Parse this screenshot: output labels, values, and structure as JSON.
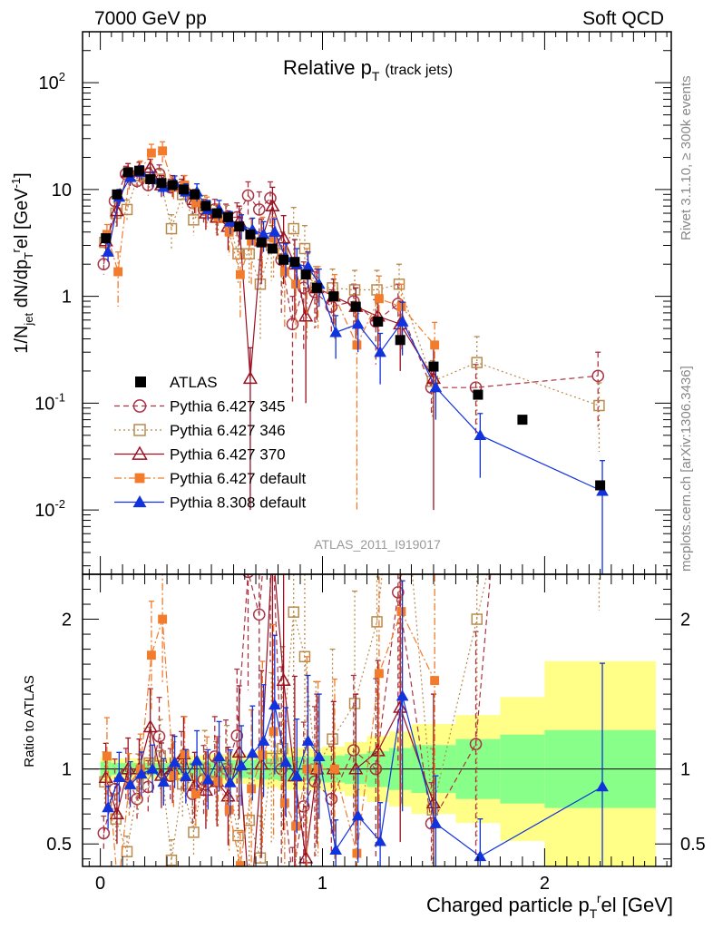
{
  "header": {
    "left": "7000 GeV pp",
    "right": "Soft QCD"
  },
  "side": {
    "rivet": "Rivet 3.1.10, ≥ 300k events",
    "mcplots": "mcplots.cern.ch [arXiv:1306.3436]"
  },
  "chart_data": {
    "type": "scatter",
    "title": "Relative p_T (track jets)",
    "title_main": "Relative p",
    "title_sub": "T",
    "title_note": "(track jets)",
    "watermark": "ATLAS_2011_I919017",
    "ylabel_main": "1/N_jet dN/dp_T^rel [GeV^-1]",
    "xlabel": "Charged particle p_T^rel [GeV]",
    "ylabel_ratio": "Ratio to ATLAS",
    "xlim": [
      -0.08,
      2.57
    ],
    "ylim_main": [
      0.0025,
      300
    ],
    "ylim_ratio": [
      0.35,
      2.3
    ],
    "yscale_main": "log",
    "legend_position": "center-left",
    "x_ticks": [
      "0",
      "1",
      "2"
    ],
    "y_ticks_main": [
      "10^-2",
      "10^-1",
      "1",
      "10",
      "10^2"
    ],
    "y_ticks_ratio": [
      "0.5",
      "1",
      "2"
    ],
    "data": {
      "name": "ATLAS",
      "x": [
        0.025,
        0.075,
        0.125,
        0.175,
        0.225,
        0.275,
        0.325,
        0.375,
        0.425,
        0.475,
        0.525,
        0.575,
        0.625,
        0.675,
        0.725,
        0.775,
        0.825,
        0.875,
        0.925,
        0.975,
        1.05,
        1.15,
        1.25,
        1.35,
        1.5,
        1.7,
        1.9,
        2.25
      ],
      "y": [
        3.5,
        9.0,
        14.5,
        15.0,
        12.5,
        11.5,
        11.0,
        10.0,
        9.0,
        7.0,
        6.0,
        5.5,
        4.5,
        3.8,
        3.2,
        2.8,
        2.2,
        2.1,
        1.6,
        1.2,
        1.0,
        0.8,
        0.58,
        0.39,
        0.22,
        0.12,
        0.07,
        0.017
      ]
    },
    "band_edges": [
      0.0,
      0.05,
      0.1,
      0.2,
      0.3,
      0.4,
      0.5,
      0.6,
      0.7,
      0.8,
      0.9,
      1.0,
      1.1,
      1.2,
      1.3,
      1.4,
      1.6,
      1.8,
      2.0,
      2.5
    ],
    "band_stat": [
      0.05,
      0.04,
      0.04,
      0.04,
      0.04,
      0.05,
      0.06,
      0.06,
      0.07,
      0.08,
      0.08,
      0.09,
      0.1,
      0.12,
      0.14,
      0.16,
      0.2,
      0.23,
      0.26
    ],
    "band_total": [
      0.08,
      0.07,
      0.07,
      0.07,
      0.08,
      0.09,
      0.1,
      0.1,
      0.12,
      0.14,
      0.14,
      0.15,
      0.18,
      0.22,
      0.25,
      0.3,
      0.36,
      0.48,
      0.72
    ],
    "series": [
      {
        "name": "Pythia 6.427 345",
        "color": "#aa3344",
        "marker": "open-circle",
        "line": "dashed",
        "x": [
          0.025,
          0.075,
          0.125,
          0.175,
          0.225,
          0.275,
          0.325,
          0.375,
          0.425,
          0.475,
          0.525,
          0.575,
          0.625,
          0.675,
          0.725,
          0.775,
          0.825,
          0.875,
          0.925,
          0.975,
          1.05,
          1.15,
          1.25,
          1.35,
          1.5,
          1.7,
          2.25
        ],
        "y": [
          2.0,
          7.8,
          14.0,
          12.0,
          11.0,
          14.0,
          10.5,
          10.5,
          7.5,
          6.5,
          6.5,
          5.5,
          5.5,
          8.8,
          6.5,
          8.3,
          2.2,
          0.55,
          1.2,
          1.1,
          0.8,
          0.9,
          0.58,
          0.85,
          0.14,
          0.14,
          0.18
        ],
        "err": [
          0.4,
          1.8,
          2.5,
          2.2,
          2.2,
          3.0,
          2.0,
          2.0,
          1.8,
          1.6,
          1.6,
          1.8,
          2.0,
          3.0,
          3.0,
          3.5,
          1.5,
          0.45,
          0.9,
          0.6,
          0.35,
          0.4,
          0.35,
          0.45,
          0.06,
          0.09,
          0.12
        ]
      },
      {
        "name": "Pythia 6.427 346",
        "color": "#b98a4b",
        "marker": "open-square",
        "line": "dotted",
        "x": [
          0.025,
          0.075,
          0.125,
          0.175,
          0.225,
          0.275,
          0.325,
          0.375,
          0.425,
          0.475,
          0.525,
          0.575,
          0.625,
          0.675,
          0.725,
          0.775,
          0.825,
          0.875,
          0.925,
          0.975,
          1.05,
          1.15,
          1.25,
          1.35,
          1.5,
          1.7,
          2.25
        ],
        "y": [
          3.2,
          6.0,
          6.5,
          13.5,
          13.0,
          12.5,
          4.3,
          9.0,
          5.2,
          7.0,
          5.5,
          5.5,
          2.5,
          2.5,
          1.3,
          3.0,
          2.5,
          4.3,
          2.8,
          1.2,
          1.2,
          1.15,
          1.15,
          1.3,
          0.16,
          0.24,
          0.095
        ],
        "err": [
          0.7,
          1.5,
          1.5,
          3.0,
          3.0,
          2.8,
          1.5,
          2.2,
          1.5,
          1.8,
          1.6,
          1.6,
          1.2,
          1.2,
          0.9,
          1.6,
          1.5,
          2.5,
          1.8,
          0.7,
          0.6,
          0.6,
          0.6,
          0.7,
          0.09,
          0.18,
          0.06
        ]
      },
      {
        "name": "Pythia 6.427 370",
        "color": "#991122",
        "marker": "open-triangle",
        "line": "solid",
        "x": [
          0.025,
          0.075,
          0.125,
          0.175,
          0.225,
          0.275,
          0.325,
          0.375,
          0.425,
          0.475,
          0.525,
          0.575,
          0.625,
          0.675,
          0.725,
          0.775,
          0.825,
          0.875,
          0.925,
          0.975,
          1.05,
          1.15,
          1.25,
          1.35,
          1.5
        ],
        "y": [
          3.3,
          6.3,
          14.5,
          15.0,
          16.0,
          11.0,
          11.0,
          11.0,
          8.0,
          6.0,
          5.5,
          4.5,
          5.0,
          0.17,
          3.3,
          7.0,
          3.5,
          2.0,
          0.65,
          1.2,
          1.0,
          0.8,
          0.65,
          0.55,
          0.17
        ],
        "err": [
          0.8,
          1.8,
          3.0,
          3.0,
          3.2,
          2.5,
          2.5,
          2.5,
          2.0,
          1.8,
          1.8,
          1.8,
          2.0,
          0.16,
          2.0,
          3.5,
          2.2,
          1.4,
          0.55,
          0.6,
          0.45,
          0.4,
          0.35,
          0.35,
          0.16
        ]
      },
      {
        "name": "Pythia 6.427 default",
        "color": "#f27b2c",
        "marker": "filled-square",
        "line": "dash-dot",
        "x": [
          0.025,
          0.075,
          0.125,
          0.175,
          0.225,
          0.275,
          0.325,
          0.375,
          0.425,
          0.475,
          0.525,
          0.575,
          0.625,
          0.675,
          0.725,
          0.775,
          0.825,
          0.875,
          0.925,
          0.975,
          1.05,
          1.15,
          1.25,
          1.35,
          1.5
        ],
        "y": [
          3.8,
          1.7,
          13.0,
          15.0,
          22.0,
          23.0,
          10.5,
          11.0,
          7.5,
          6.5,
          5.5,
          4.0,
          1.6,
          3.3,
          3.5,
          3.5,
          1.7,
          1.3,
          1.6,
          1.2,
          1.0,
          0.35,
          0.95,
          0.8,
          0.35
        ],
        "err": [
          0.9,
          0.9,
          3.0,
          3.5,
          4.5,
          5.0,
          2.5,
          2.5,
          2.0,
          2.0,
          1.8,
          1.6,
          1.0,
          2.0,
          2.0,
          2.0,
          1.2,
          0.9,
          1.2,
          0.7,
          0.6,
          0.34,
          0.6,
          0.5,
          0.22
        ]
      },
      {
        "name": "Pythia 8.308 default",
        "color": "#1133dd",
        "marker": "filled-triangle",
        "line": "solid",
        "x": [
          0.025,
          0.075,
          0.125,
          0.175,
          0.225,
          0.275,
          0.325,
          0.375,
          0.425,
          0.475,
          0.525,
          0.575,
          0.625,
          0.675,
          0.725,
          0.775,
          0.825,
          0.875,
          0.925,
          0.975,
          1.05,
          1.15,
          1.25,
          1.35,
          1.5,
          1.7,
          2.25
        ],
        "y": [
          2.6,
          8.5,
          13.0,
          14.5,
          12.5,
          10.5,
          11.5,
          9.5,
          9.5,
          6.5,
          6.5,
          5.0,
          4.6,
          4.2,
          3.8,
          4.0,
          2.3,
          2.0,
          1.9,
          1.3,
          0.46,
          0.55,
          0.3,
          0.58,
          0.14,
          0.05,
          0.015
        ],
        "err": [
          0.5,
          1.5,
          2.2,
          2.2,
          2.0,
          1.8,
          1.9,
          1.8,
          1.8,
          1.4,
          1.4,
          1.2,
          1.2,
          1.2,
          1.2,
          1.3,
          0.8,
          0.8,
          0.7,
          0.5,
          0.2,
          0.25,
          0.15,
          0.3,
          0.07,
          0.03,
          0.014
        ]
      }
    ]
  }
}
